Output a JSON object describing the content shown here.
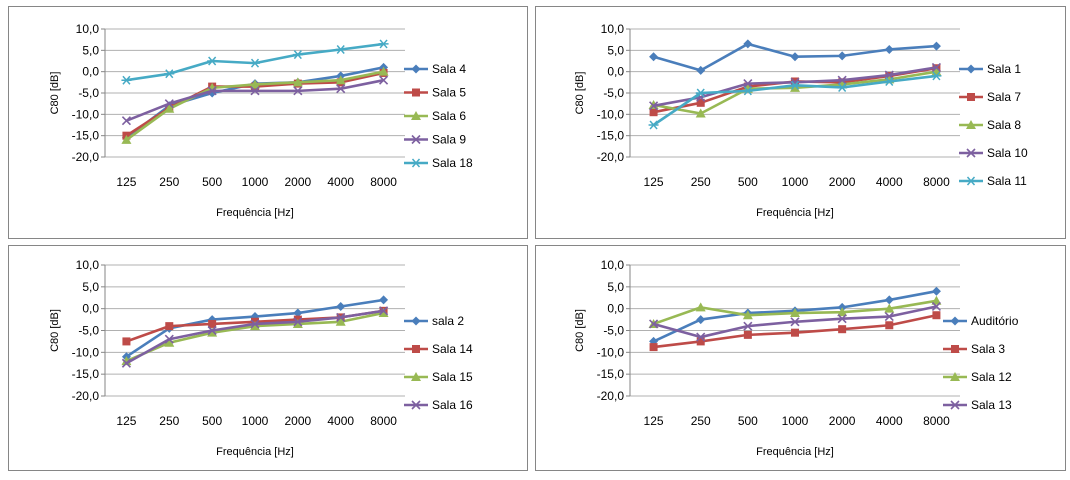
{
  "chart_data": [
    {
      "type": "line",
      "xlabel": "Frequência [Hz]",
      "ylabel": "C80 [dB]",
      "ylim": [
        -20,
        10
      ],
      "yticks": [
        10,
        5,
        0,
        -5,
        -10,
        -15,
        -20
      ],
      "ytick_labels": [
        "10,0",
        "5,0",
        "0,0",
        "-5,0",
        "-10,0",
        "-15,0",
        "-20,0"
      ],
      "categories": [
        "125",
        "250",
        "500",
        "1000",
        "2000",
        "4000",
        "8000"
      ],
      "legend_position": "right",
      "series": [
        {
          "name": "Sala 4",
          "color": "#4a7ebb",
          "marker": "diamond",
          "values": [
            -15.5,
            -8.0,
            -5.0,
            -2.8,
            -2.5,
            -1.0,
            1.0
          ]
        },
        {
          "name": "Sala 5",
          "color": "#be4b48",
          "marker": "square",
          "values": [
            -15.0,
            -8.5,
            -3.5,
            -3.5,
            -2.8,
            -2.5,
            -0.3
          ]
        },
        {
          "name": "Sala 6",
          "color": "#98b954",
          "marker": "triangle",
          "values": [
            -16.0,
            -8.7,
            -3.8,
            -3.0,
            -2.5,
            -2.0,
            0.0
          ]
        },
        {
          "name": "Sala 9",
          "color": "#7d60a0",
          "marker": "x",
          "values": [
            -11.5,
            -7.5,
            -4.5,
            -4.5,
            -4.5,
            -4.0,
            -2.0
          ]
        },
        {
          "name": "Sala 18",
          "color": "#46aac5",
          "marker": "star",
          "values": [
            -2.0,
            -0.5,
            2.5,
            2.0,
            4.0,
            5.2,
            6.5
          ]
        }
      ]
    },
    {
      "type": "line",
      "xlabel": "Frequência [Hz]",
      "ylabel": "C80 [dB]",
      "ylim": [
        -20,
        10
      ],
      "yticks": [
        10,
        5,
        0,
        -5,
        -10,
        -15,
        -20
      ],
      "ytick_labels": [
        "10,0",
        "5,0",
        "0,0",
        "-5,0",
        "-10,0",
        "-15,0",
        "-20,0"
      ],
      "categories": [
        "125",
        "250",
        "500",
        "1000",
        "2000",
        "4000",
        "8000"
      ],
      "legend_position": "right",
      "series": [
        {
          "name": "Sala 1",
          "color": "#4a7ebb",
          "marker": "diamond",
          "values": [
            3.5,
            0.3,
            6.5,
            3.5,
            3.7,
            5.2,
            6.0
          ]
        },
        {
          "name": "Sala 7",
          "color": "#be4b48",
          "marker": "square",
          "values": [
            -9.5,
            -7.3,
            -3.5,
            -2.3,
            -2.5,
            -1.0,
            0.8
          ]
        },
        {
          "name": "Sala 8",
          "color": "#98b954",
          "marker": "triangle",
          "values": [
            -7.8,
            -9.8,
            -4.0,
            -3.8,
            -3.0,
            -1.8,
            0.0
          ]
        },
        {
          "name": "Sala 10",
          "color": "#7d60a0",
          "marker": "x",
          "values": [
            -8.0,
            -6.0,
            -2.8,
            -2.5,
            -2.0,
            -0.8,
            1.0
          ]
        },
        {
          "name": "Sala 11",
          "color": "#46aac5",
          "marker": "star",
          "values": [
            -12.5,
            -5.0,
            -4.5,
            -3.2,
            -3.7,
            -2.3,
            -1.0
          ]
        }
      ]
    },
    {
      "type": "line",
      "xlabel": "Frequência [Hz]",
      "ylabel": "C80 [dB]",
      "ylim": [
        -20,
        10
      ],
      "yticks": [
        10,
        5,
        0,
        -5,
        -10,
        -15,
        -20
      ],
      "ytick_labels": [
        "10,0",
        "5,0",
        "0,0",
        "-5,0",
        "-10,0",
        "-15,0",
        "-20,0"
      ],
      "categories": [
        "125",
        "250",
        "500",
        "1000",
        "2000",
        "4000",
        "8000"
      ],
      "legend_position": "right",
      "series": [
        {
          "name": "sala 2",
          "color": "#4a7ebb",
          "marker": "diamond",
          "values": [
            -11.0,
            -4.5,
            -2.5,
            -1.8,
            -1.0,
            0.5,
            2.0
          ]
        },
        {
          "name": "Sala 14",
          "color": "#be4b48",
          "marker": "square",
          "values": [
            -7.5,
            -4.0,
            -3.5,
            -3.0,
            -2.5,
            -2.0,
            -0.5
          ]
        },
        {
          "name": "Sala 15",
          "color": "#98b954",
          "marker": "triangle",
          "values": [
            -12.0,
            -7.8,
            -5.5,
            -4.0,
            -3.5,
            -3.0,
            -1.0
          ]
        },
        {
          "name": "Sala 16",
          "color": "#7d60a0",
          "marker": "x",
          "values": [
            -12.5,
            -7.0,
            -5.0,
            -3.5,
            -3.0,
            -2.0,
            -0.5
          ]
        }
      ]
    },
    {
      "type": "line",
      "xlabel": "Frequência [Hz]",
      "ylabel": "C80 [dB]",
      "ylim": [
        -20,
        10
      ],
      "yticks": [
        10,
        5,
        0,
        -5,
        -10,
        -15,
        -20
      ],
      "ytick_labels": [
        "10,0",
        "5,0",
        "0,0",
        "-5,0",
        "-10,0",
        "-15,0",
        "-20,0"
      ],
      "categories": [
        "125",
        "250",
        "500",
        "1000",
        "2000",
        "4000",
        "8000"
      ],
      "legend_position": "right",
      "series": [
        {
          "name": "Auditório",
          "color": "#4a7ebb",
          "marker": "diamond",
          "values": [
            -7.5,
            -2.5,
            -1.0,
            -0.5,
            0.3,
            2.0,
            4.0
          ]
        },
        {
          "name": "Sala 3",
          "color": "#be4b48",
          "marker": "square",
          "values": [
            -8.8,
            -7.5,
            -6.0,
            -5.5,
            -4.7,
            -3.8,
            -1.5
          ]
        },
        {
          "name": "Sala 12",
          "color": "#98b954",
          "marker": "triangle",
          "values": [
            -3.5,
            0.3,
            -1.5,
            -1.0,
            -0.8,
            0.0,
            1.8
          ]
        },
        {
          "name": "Sala 13",
          "color": "#7d60a0",
          "marker": "x",
          "values": [
            -3.5,
            -6.5,
            -4.0,
            -3.0,
            -2.3,
            -1.8,
            0.5
          ]
        }
      ]
    }
  ]
}
